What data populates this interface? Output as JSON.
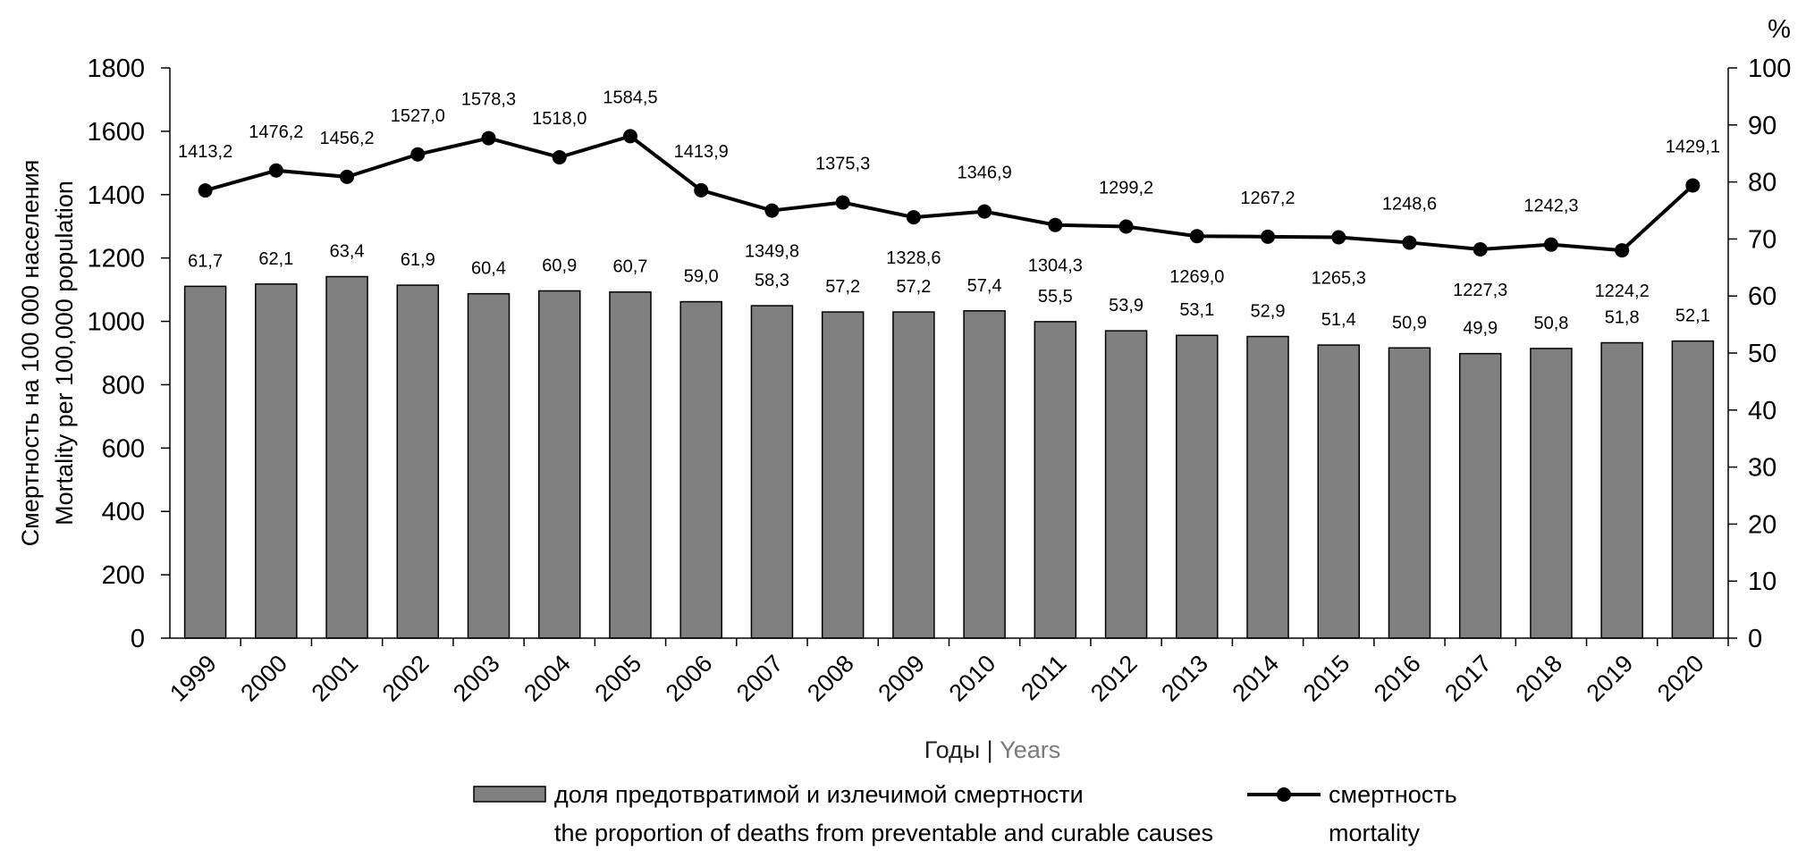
{
  "chart_data": {
    "type": "bar+line",
    "categories": [
      "1999",
      "2000",
      "2001",
      "2002",
      "2003",
      "2004",
      "2005",
      "2006",
      "2007",
      "2008",
      "2009",
      "2010",
      "2011",
      "2012",
      "2013",
      "2014",
      "2015",
      "2016",
      "2017",
      "2018",
      "2019",
      "2020"
    ],
    "series": [
      {
        "name": "доля предотвратимой и излечимой смертности / the proportion of deaths from preventable and curable causes",
        "type": "bar",
        "axis": "right",
        "color": "#808080",
        "values": [
          61.7,
          62.1,
          63.4,
          61.9,
          60.4,
          60.9,
          60.7,
          59.0,
          58.3,
          57.2,
          57.2,
          57.4,
          55.5,
          53.9,
          53.1,
          52.9,
          51.4,
          50.9,
          49.9,
          50.8,
          51.8,
          52.1
        ],
        "labels": [
          "61,7",
          "62,1",
          "63,4",
          "61,9",
          "60,4",
          "60,9",
          "60,7",
          "59,0",
          "58,3",
          "57,2",
          "57,2",
          "57,4",
          "55,5",
          "53,9",
          "53,1",
          "52,9",
          "51,4",
          "50,9",
          "49,9",
          "50,8",
          "51,8",
          "52,1"
        ]
      },
      {
        "name": "смертность / mortality",
        "type": "line",
        "axis": "left",
        "color": "#000000",
        "values": [
          1413.2,
          1476.2,
          1456.2,
          1527.0,
          1578.3,
          1518.0,
          1584.5,
          1413.9,
          1349.8,
          1375.3,
          1328.6,
          1346.9,
          1304.3,
          1299.2,
          1269.0,
          1267.2,
          1265.3,
          1248.6,
          1227.3,
          1242.3,
          1224.2,
          1429.1
        ],
        "labels": [
          "1413,2",
          "1476,2",
          "1456,2",
          "1527,0",
          "1578,3",
          "1518,0",
          "1584,5",
          "1413,9",
          "1349,8",
          "1375,3",
          "1328,6",
          "1346,9",
          "1304,3",
          "1299,2",
          "1269,0",
          "1267,2",
          "1265,3",
          "1248,6",
          "1227,3",
          "1242,3",
          "1224,2",
          "1429,1"
        ],
        "label_position": [
          "above",
          "above",
          "above",
          "above",
          "above",
          "above",
          "above",
          "above",
          "below",
          "above",
          "below",
          "above",
          "below",
          "above",
          "below",
          "above",
          "below",
          "above",
          "below",
          "above",
          "below",
          "above"
        ]
      }
    ],
    "ylim_left": [
      0,
      1800
    ],
    "ylim_right": [
      0,
      100
    ],
    "yticks_left": [
      "0",
      "200",
      "400",
      "600",
      "800",
      "1000",
      "1200",
      "1400",
      "1600",
      "1800"
    ],
    "yticks_right": [
      "0",
      "10",
      "20",
      "30",
      "40",
      "50",
      "60",
      "70",
      "80",
      "90",
      "100"
    ],
    "ylabel_left": [
      "Смертность на 100 000 населения",
      "Mortality per 100,000 population"
    ],
    "ylabel_right": "%",
    "xlabel_ru": "Годы",
    "xlabel_sep": " | ",
    "xlabel_en": "Years",
    "legend": {
      "bar_ru": "доля предотвратимой и излечимой смертности",
      "bar_en": "the proportion of deaths from preventable and curable causes",
      "line_ru": "смертность",
      "line_en": "mortality"
    },
    "grid": false
  }
}
